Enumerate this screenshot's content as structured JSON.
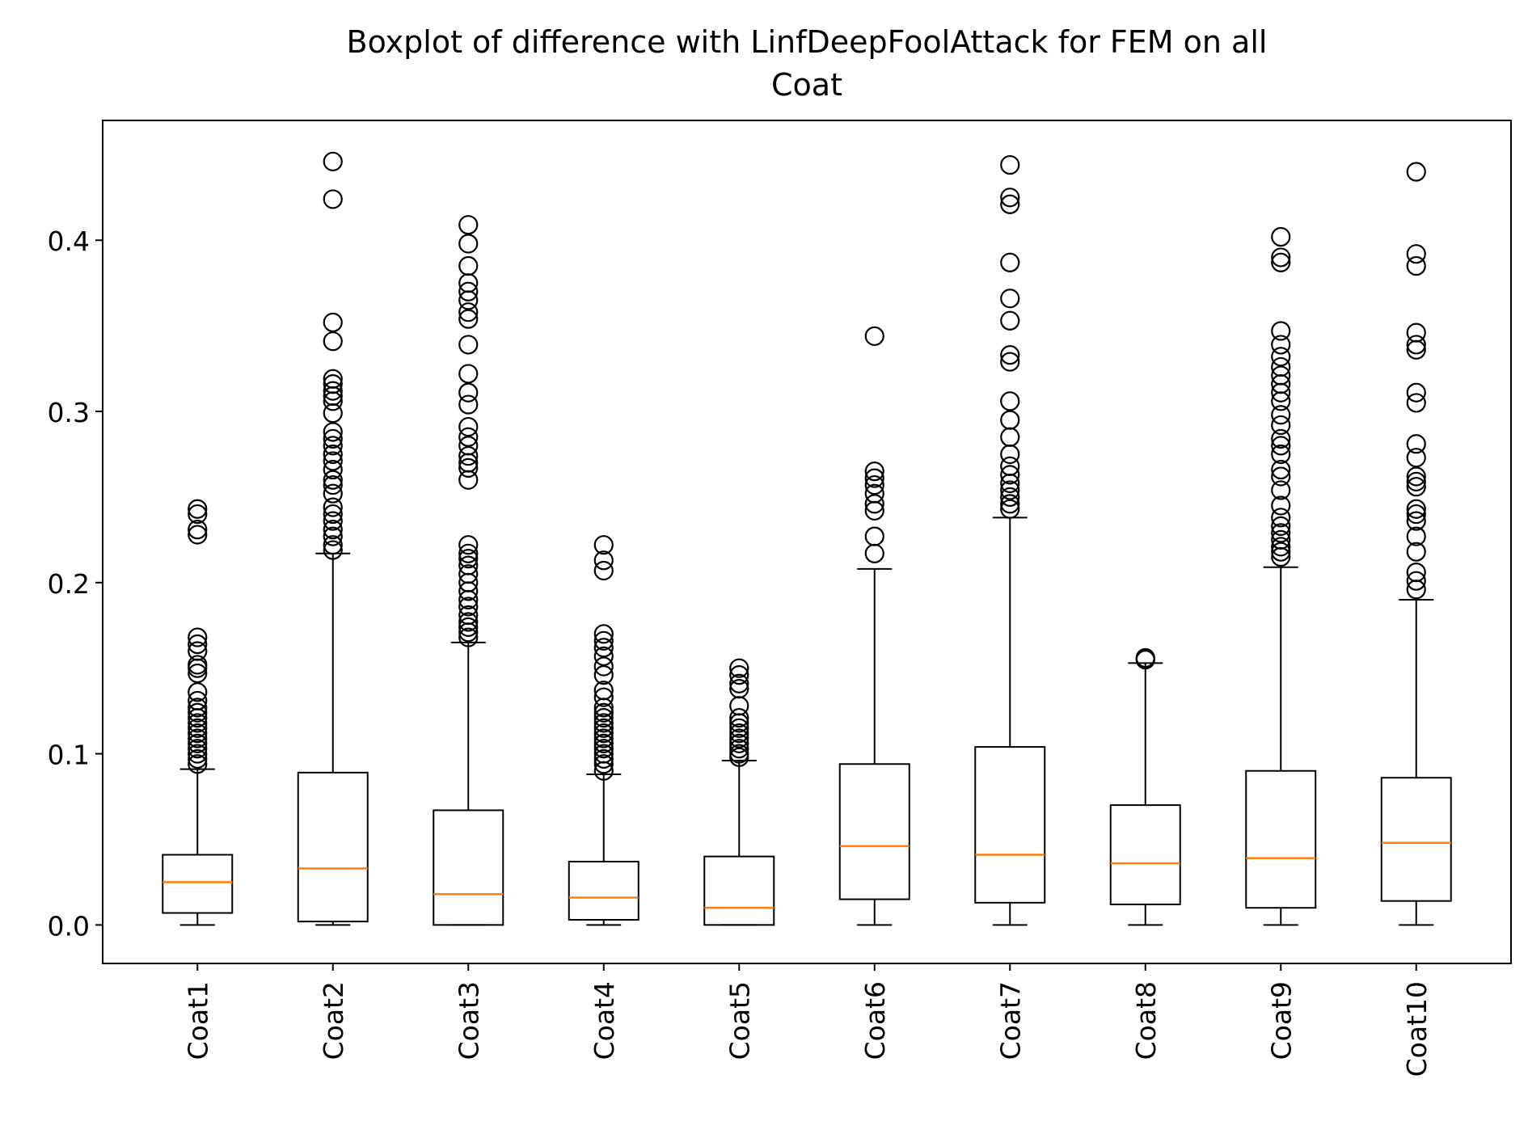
{
  "chart_data": {
    "type": "boxplot",
    "title": "Boxplot of difference with LinfDeepFoolAttack for FEM on all",
    "subtitle": "Coat",
    "xlabel": "",
    "ylabel": "",
    "ylim": [
      -0.0225,
      0.47
    ],
    "yticks": [
      "0.0",
      "0.1",
      "0.2",
      "0.3",
      "0.4"
    ],
    "grid": false,
    "colors": {
      "box": "#000000",
      "median": "#ff7f0e",
      "outlier": "#000000"
    },
    "categories": [
      "Coat1",
      "Coat2",
      "Coat3",
      "Coat4",
      "Coat5",
      "Coat6",
      "Coat7",
      "Coat8",
      "Coat9",
      "Coat10"
    ],
    "boxes": [
      {
        "label": "Coat1",
        "whisker_low": 0.0,
        "q1": 0.007,
        "median": 0.025,
        "q3": 0.041,
        "whisker_high": 0.091,
        "outliers": [
          0.243,
          0.24,
          0.231,
          0.228,
          0.168,
          0.164,
          0.16,
          0.152,
          0.15,
          0.147,
          0.136,
          0.131,
          0.127,
          0.124,
          0.121,
          0.118,
          0.115,
          0.112,
          0.109,
          0.106,
          0.103,
          0.1,
          0.097,
          0.094
        ]
      },
      {
        "label": "Coat2",
        "whisker_low": 0.0,
        "q1": 0.002,
        "median": 0.033,
        "q3": 0.089,
        "whisker_high": 0.217,
        "outliers": [
          0.446,
          0.424,
          0.352,
          0.341,
          0.319,
          0.316,
          0.312,
          0.309,
          0.306,
          0.299,
          0.288,
          0.284,
          0.28,
          0.275,
          0.271,
          0.266,
          0.26,
          0.257,
          0.252,
          0.244,
          0.24,
          0.236,
          0.231,
          0.227,
          0.222,
          0.219
        ]
      },
      {
        "label": "Coat3",
        "whisker_low": 0.0,
        "q1": 0.0,
        "median": 0.018,
        "q3": 0.067,
        "whisker_high": 0.165,
        "outliers": [
          0.409,
          0.398,
          0.385,
          0.375,
          0.37,
          0.365,
          0.358,
          0.354,
          0.339,
          0.322,
          0.311,
          0.304,
          0.291,
          0.285,
          0.28,
          0.274,
          0.27,
          0.267,
          0.26,
          0.222,
          0.217,
          0.214,
          0.21,
          0.205,
          0.2,
          0.195,
          0.19,
          0.186,
          0.181,
          0.177,
          0.174,
          0.171,
          0.168
        ]
      },
      {
        "label": "Coat4",
        "whisker_low": 0.0,
        "q1": 0.003,
        "median": 0.016,
        "q3": 0.037,
        "whisker_high": 0.088,
        "outliers": [
          0.222,
          0.213,
          0.207,
          0.17,
          0.166,
          0.162,
          0.157,
          0.151,
          0.146,
          0.137,
          0.133,
          0.127,
          0.124,
          0.121,
          0.118,
          0.115,
          0.112,
          0.109,
          0.106,
          0.103,
          0.1,
          0.097,
          0.094,
          0.09
        ]
      },
      {
        "label": "Coat5",
        "whisker_low": 0.0,
        "q1": 0.0,
        "median": 0.01,
        "q3": 0.04,
        "whisker_high": 0.096,
        "outliers": [
          0.15,
          0.146,
          0.141,
          0.138,
          0.128,
          0.121,
          0.118,
          0.115,
          0.112,
          0.109,
          0.106,
          0.103,
          0.1,
          0.098
        ]
      },
      {
        "label": "Coat6",
        "whisker_low": 0.0,
        "q1": 0.015,
        "median": 0.046,
        "q3": 0.094,
        "whisker_high": 0.208,
        "outliers": [
          0.344,
          0.265,
          0.261,
          0.257,
          0.252,
          0.246,
          0.242,
          0.227,
          0.217
        ]
      },
      {
        "label": "Coat7",
        "whisker_low": 0.0,
        "q1": 0.013,
        "median": 0.041,
        "q3": 0.104,
        "whisker_high": 0.238,
        "outliers": [
          0.444,
          0.425,
          0.421,
          0.387,
          0.366,
          0.353,
          0.333,
          0.329,
          0.306,
          0.295,
          0.285,
          0.275,
          0.268,
          0.263,
          0.258,
          0.254,
          0.25,
          0.246,
          0.243
        ]
      },
      {
        "label": "Coat8",
        "whisker_low": 0.0,
        "q1": 0.012,
        "median": 0.036,
        "q3": 0.07,
        "whisker_high": 0.153,
        "outliers": [
          0.156,
          0.155
        ]
      },
      {
        "label": "Coat9",
        "whisker_low": 0.0,
        "q1": 0.01,
        "median": 0.039,
        "q3": 0.09,
        "whisker_high": 0.209,
        "outliers": [
          0.402,
          0.39,
          0.387,
          0.347,
          0.339,
          0.332,
          0.326,
          0.321,
          0.316,
          0.311,
          0.306,
          0.298,
          0.292,
          0.284,
          0.28,
          0.275,
          0.266,
          0.262,
          0.254,
          0.245,
          0.238,
          0.233,
          0.229,
          0.225,
          0.221,
          0.218,
          0.215
        ]
      },
      {
        "label": "Coat10",
        "whisker_low": 0.0,
        "q1": 0.014,
        "median": 0.048,
        "q3": 0.086,
        "whisker_high": 0.19,
        "outliers": [
          0.44,
          0.392,
          0.385,
          0.346,
          0.339,
          0.336,
          0.311,
          0.305,
          0.281,
          0.273,
          0.262,
          0.259,
          0.256,
          0.243,
          0.24,
          0.236,
          0.227,
          0.218,
          0.206,
          0.201,
          0.196
        ]
      }
    ]
  }
}
